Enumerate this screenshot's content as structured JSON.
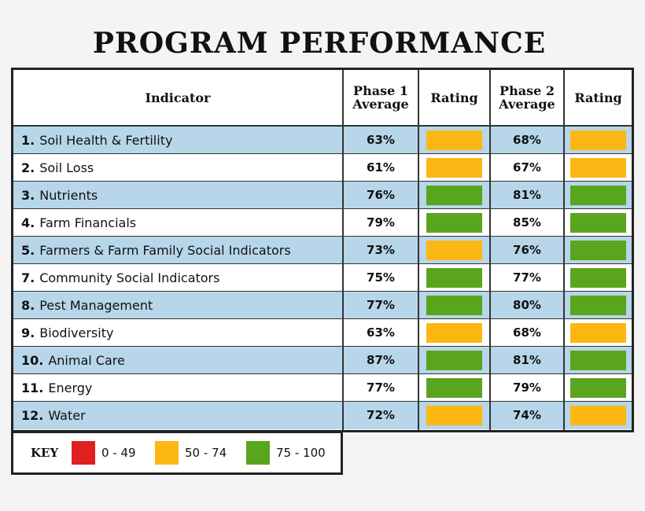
{
  "title": "PROGRAM PERFORMANCE",
  "colors": {
    "red": "#e02020",
    "orange": "#fcb714",
    "green": "#5aa51e",
    "blue_row": "#b7d6e9"
  },
  "chart_data": {
    "type": "table",
    "title": "PROGRAM PERFORMANCE",
    "columns": [
      "Indicator",
      "Phase 1 Average",
      "Rating",
      "Phase 2 Average",
      "Rating"
    ],
    "headers": {
      "indicator": "Indicator",
      "phase1": "Phase 1 Average",
      "rating1": "Rating",
      "phase2": "Phase 2 Average",
      "rating2": "Rating"
    },
    "rows": [
      {
        "num": "1.",
        "name": "Soil Health & Fertility",
        "phase1": "63%",
        "phase1_rating": "orange",
        "phase2": "68%",
        "phase2_rating": "orange"
      },
      {
        "num": "2.",
        "name": "Soil Loss",
        "phase1": "61%",
        "phase1_rating": "orange",
        "phase2": "67%",
        "phase2_rating": "orange"
      },
      {
        "num": "3.",
        "name": "Nutrients",
        "phase1": "76%",
        "phase1_rating": "green",
        "phase2": "81%",
        "phase2_rating": "green"
      },
      {
        "num": "4.",
        "name": "Farm Financials",
        "phase1": "79%",
        "phase1_rating": "green",
        "phase2": "85%",
        "phase2_rating": "green"
      },
      {
        "num": "5.",
        "name": "Farmers & Farm Family Social Indicators",
        "phase1": "73%",
        "phase1_rating": "orange",
        "phase2": "76%",
        "phase2_rating": "green"
      },
      {
        "num": "7.",
        "name": "Community Social Indicators",
        "phase1": "75%",
        "phase1_rating": "green",
        "phase2": "77%",
        "phase2_rating": "green"
      },
      {
        "num": "8.",
        "name": "Pest Management",
        "phase1": "77%",
        "phase1_rating": "green",
        "phase2": "80%",
        "phase2_rating": "green"
      },
      {
        "num": "9.",
        "name": "Biodiversity",
        "phase1": "63%",
        "phase1_rating": "orange",
        "phase2": "68%",
        "phase2_rating": "orange"
      },
      {
        "num": "10.",
        "name": "Animal Care",
        "phase1": "87%",
        "phase1_rating": "green",
        "phase2": "81%",
        "phase2_rating": "green"
      },
      {
        "num": "11.",
        "name": "Energy",
        "phase1": "77%",
        "phase1_rating": "green",
        "phase2": "79%",
        "phase2_rating": "green"
      },
      {
        "num": "12.",
        "name": "Water",
        "phase1": "72%",
        "phase1_rating": "orange",
        "phase2": "74%",
        "phase2_rating": "orange"
      }
    ],
    "key": {
      "title": "KEY",
      "items": [
        {
          "color": "red",
          "label": "0 - 49"
        },
        {
          "color": "orange",
          "label": "50 - 74"
        },
        {
          "color": "green",
          "label": "75 - 100"
        }
      ]
    }
  }
}
